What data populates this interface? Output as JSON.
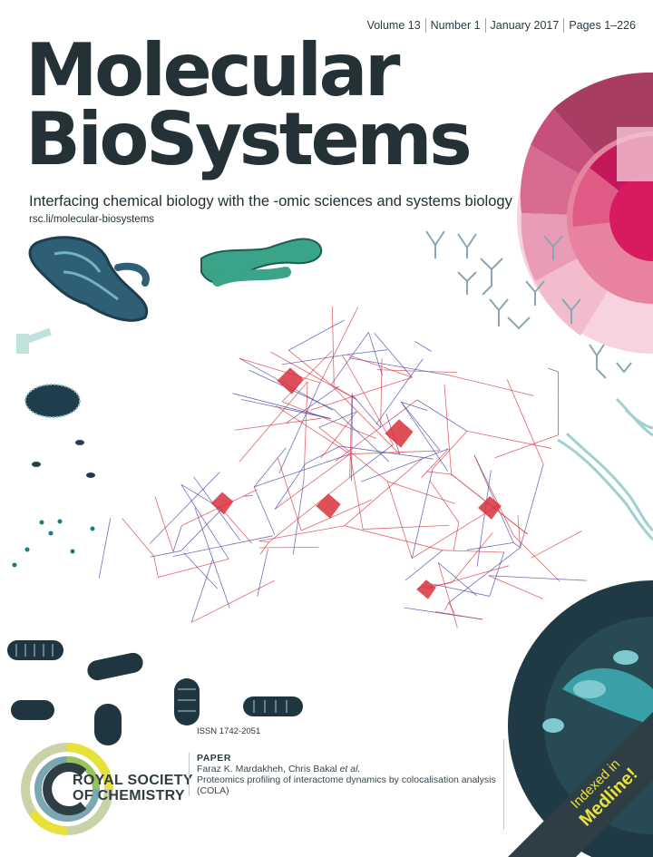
{
  "issue": {
    "volume": "Volume 13",
    "number": "Number 1",
    "date": "January 2017",
    "pages": "Pages 1–226"
  },
  "journal": {
    "title_line1": "Molecular",
    "title_line2": "BioSystems",
    "tagline": "Interfacing chemical biology with the -omic sciences and systems biology",
    "url": "rsc.li/molecular-biosystems"
  },
  "issn": "ISSN 1742-2051",
  "publisher": {
    "line1": "ROYAL SOCIETY",
    "line2": "OF CHEMISTRY"
  },
  "paper": {
    "label": "PAPER",
    "authors_plain": "Faraz K. Mardakheh, Chris Bakal ",
    "authors_etal": "et al.",
    "title": "Proteomics profiling of interactome dynamics by colocalisation analysis (COLA)"
  },
  "banner": {
    "line1": "Indexed in",
    "line2": "Medline!"
  },
  "colors": {
    "title": "#243238",
    "teal": "#2b8c6e",
    "network_red": "#d9303a",
    "network_blue": "#3f3fa8",
    "magenta": "#c2185b",
    "banner": "#2f3d44",
    "banner_text": "#e8e23a"
  }
}
